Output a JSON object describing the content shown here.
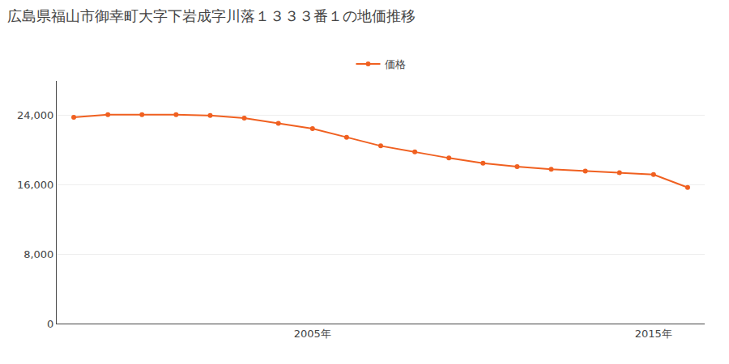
{
  "chart_data": {
    "type": "line",
    "title": "広島県福山市御幸町大字下岩成字川落１３３３番１の地価推移",
    "x": [
      1998,
      1999,
      2000,
      2001,
      2002,
      2003,
      2004,
      2005,
      2006,
      2007,
      2008,
      2009,
      2010,
      2011,
      2012,
      2013,
      2014,
      2015,
      2016
    ],
    "series": [
      {
        "name": "価格",
        "color": "#f06020",
        "marker": "circle",
        "values": [
          23800,
          24100,
          24100,
          24100,
          24000,
          23700,
          23100,
          22500,
          21500,
          20500,
          19800,
          19100,
          18500,
          18100,
          17800,
          17600,
          17400,
          17200,
          15700
        ]
      }
    ],
    "xlim": [
      1997.5,
      2016.5
    ],
    "xticks": [
      {
        "value": 2005,
        "label": "2005年"
      },
      {
        "value": 2015,
        "label": "2015年"
      }
    ],
    "ylim": [
      0,
      28000
    ],
    "yticks": [
      0,
      {
        "value": 8000,
        "label": "8,000"
      },
      {
        "value": 16000,
        "label": "16,000"
      },
      {
        "value": 24000,
        "label": "24,000"
      }
    ],
    "grid": "y",
    "legend": "top"
  }
}
